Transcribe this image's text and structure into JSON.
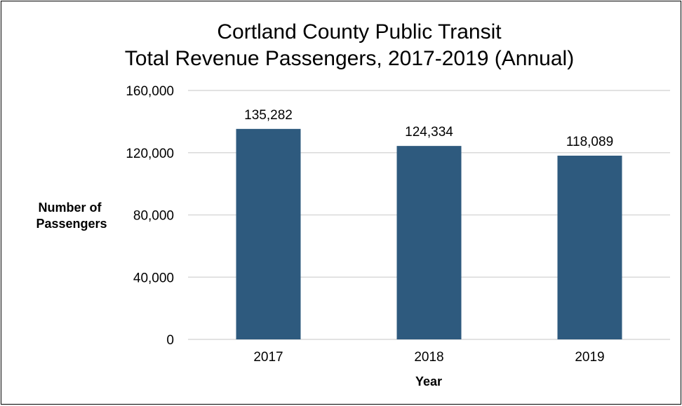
{
  "chart_data": {
    "type": "bar",
    "title": "Cortland County Public Transit",
    "subtitle": "Total Revenue Passengers, 2017-2019 (Annual)",
    "xlabel": "Year",
    "ylabel": "Number of Passengers",
    "categories": [
      "2017",
      "2018",
      "2019"
    ],
    "values": [
      135282,
      124334,
      118089
    ],
    "value_labels": [
      "135,282",
      "124,334",
      "118,089"
    ],
    "ylim": [
      0,
      160000
    ],
    "yticks": [
      0,
      40000,
      80000,
      120000,
      160000
    ],
    "ytick_labels": [
      "0",
      "40,000",
      "80,000",
      "120,000",
      "160,000"
    ],
    "grid": true,
    "legend": "none",
    "bar_color": "#2E5A7E",
    "gridline_color": "#D9D9D9"
  }
}
